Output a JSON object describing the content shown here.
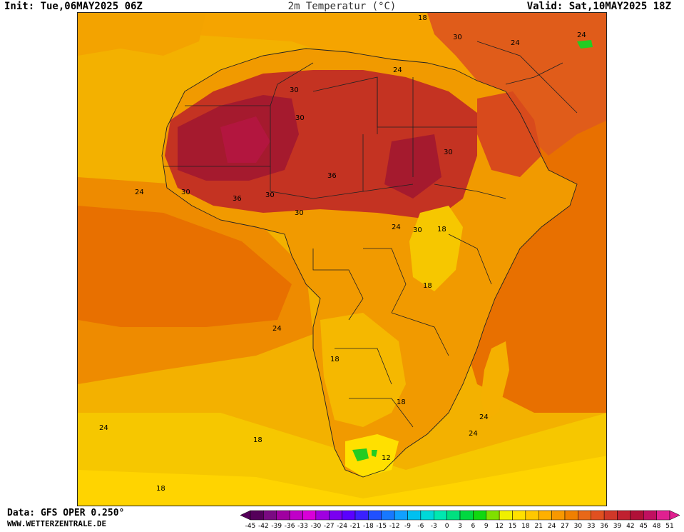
{
  "header": {
    "init": "Init: Tue,06MAY2025 06Z",
    "title": "2m Temperatur (°C)",
    "valid": "Valid: Sat,10MAY2025 18Z"
  },
  "footer": {
    "data_source": "Data: GFS OPER 0.250°",
    "site": "WWW.WETTERZENTRALE.DE"
  },
  "colors": {
    "ocean_cool": "#f6c700",
    "ocean_mild": "#f5a400",
    "ocean_warm": "#ee8b00",
    "ocean_hot": "#e87000",
    "land_warm": "#f19a00",
    "land_hot": "#e05c1a",
    "land_very_hot": "#c43322",
    "land_extreme": "#a51a2e",
    "land_peak": "#b3163f",
    "highland_cool": "#ffd700",
    "cold_spot": "#22cc22",
    "border": "#222222"
  },
  "contour_labels": [
    "18",
    "30",
    "24",
    "24",
    "24",
    "30",
    "30",
    "24",
    "30",
    "30",
    "36",
    "30",
    "36",
    "24",
    "30",
    "30",
    "18",
    "18",
    "24",
    "18",
    "18",
    "24",
    "24",
    "24",
    "18",
    "12",
    "18"
  ],
  "legend": {
    "ticks": [
      "-45",
      "-42",
      "-39",
      "-36",
      "-33",
      "-30",
      "-27",
      "-24",
      "-21",
      "-18",
      "-15",
      "-12",
      "-9",
      "-6",
      "-3",
      "0",
      "3",
      "6",
      "9",
      "12",
      "15",
      "18",
      "21",
      "24",
      "27",
      "30",
      "33",
      "36",
      "39",
      "42",
      "45",
      "48",
      "51"
    ],
    "colors": [
      "#55005a",
      "#7a0a82",
      "#a000a0",
      "#c000c8",
      "#d800d8",
      "#a000e0",
      "#7a00f0",
      "#5a00ff",
      "#3a20ff",
      "#2050ff",
      "#1878ff",
      "#10a0ff",
      "#00c0f0",
      "#00d8d8",
      "#00e8b0",
      "#00e080",
      "#00d840",
      "#10d810",
      "#80e000",
      "#f0f000",
      "#ffe000",
      "#ffc800",
      "#ffb000",
      "#f89800",
      "#f08000",
      "#e86818",
      "#e05020",
      "#d03828",
      "#c02030",
      "#b01038",
      "#c01060",
      "#e02090"
    ]
  }
}
